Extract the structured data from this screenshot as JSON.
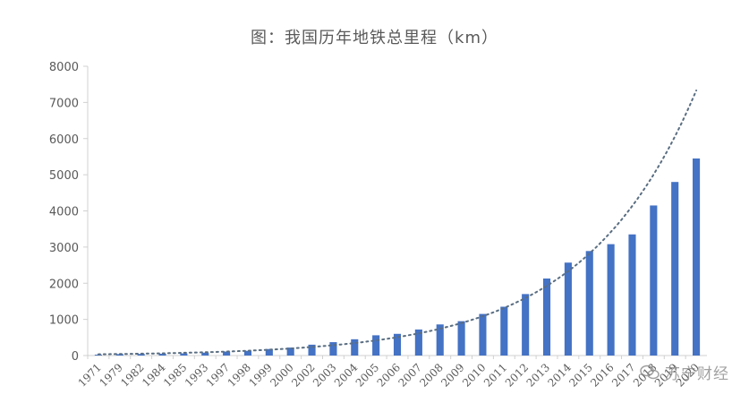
{
  "chart_data": {
    "type": "bar",
    "title": "图：我国历年地铁总里程（km）",
    "categories": [
      "1971",
      "1979",
      "1982",
      "1984",
      "1985",
      "1993",
      "1997",
      "1998",
      "1999",
      "2000",
      "2002",
      "2003",
      "2004",
      "2005",
      "2006",
      "2007",
      "2008",
      "2009",
      "2010",
      "2011",
      "2012",
      "2013",
      "2014",
      "2015",
      "2016",
      "2017",
      "2018",
      "2019",
      "2020"
    ],
    "values": [
      24,
      40,
      45,
      50,
      60,
      80,
      110,
      130,
      180,
      220,
      300,
      370,
      450,
      560,
      600,
      720,
      860,
      950,
      1150,
      1350,
      1700,
      2130,
      2570,
      2890,
      3080,
      3350,
      4150,
      4800,
      5450
    ],
    "ylim": [
      0,
      8000
    ],
    "yticks": [
      0,
      1000,
      2000,
      3000,
      4000,
      5000,
      6000,
      7000,
      8000
    ],
    "trendline": "exponential",
    "bar_color": "#4472c4",
    "trend_color": "#5a6e82",
    "grid": false,
    "legend": "none"
  },
  "watermark": {
    "text": "苏宁财经",
    "icon": "chat-bubble-icon"
  }
}
